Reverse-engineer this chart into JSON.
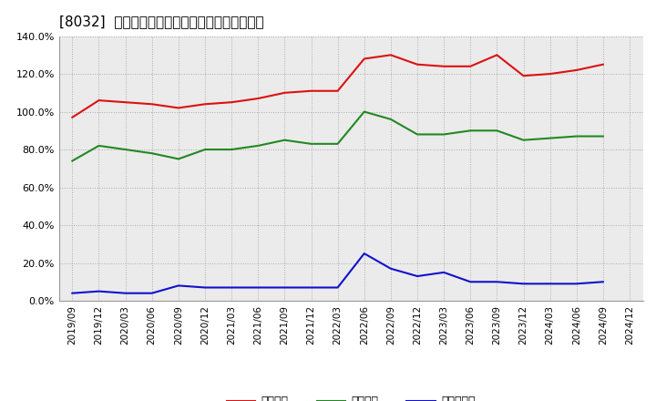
{
  "title": "[8032]  流動比率、当座比率、現頓金比率の推移",
  "dates": [
    "2019/09",
    "2019/12",
    "2020/03",
    "2020/06",
    "2020/09",
    "2020/12",
    "2021/03",
    "2021/06",
    "2021/09",
    "2021/12",
    "2022/03",
    "2022/06",
    "2022/09",
    "2022/12",
    "2023/03",
    "2023/06",
    "2023/09",
    "2023/12",
    "2024/03",
    "2024/06",
    "2024/09",
    "2024/12"
  ],
  "ryudo": [
    97,
    106,
    105,
    104,
    102,
    104,
    105,
    107,
    110,
    111,
    111,
    128,
    130,
    125,
    124,
    124,
    130,
    119,
    120,
    122,
    125,
    null
  ],
  "toza": [
    74,
    82,
    80,
    78,
    75,
    80,
    80,
    82,
    85,
    83,
    83,
    100,
    96,
    88,
    88,
    90,
    90,
    85,
    86,
    87,
    87,
    null
  ],
  "genkin": [
    4,
    5,
    4,
    4,
    8,
    7,
    7,
    7,
    7,
    7,
    7,
    25,
    17,
    13,
    15,
    10,
    10,
    9,
    9,
    9,
    10,
    null
  ],
  "ryudo_color": "#dd1111",
  "toza_color": "#228822",
  "genkin_color": "#1111cc",
  "bg_color": "#ebebeb",
  "grid_color": "#aaaaaa",
  "legend_labels": [
    "流動比率",
    "当座比率",
    "現頓金比率"
  ],
  "ylim": [
    0,
    140
  ],
  "yticks": [
    0,
    20,
    40,
    60,
    80,
    100,
    120,
    140
  ],
  "title_fontsize": 11,
  "tick_fontsize": 8,
  "legend_fontsize": 9
}
